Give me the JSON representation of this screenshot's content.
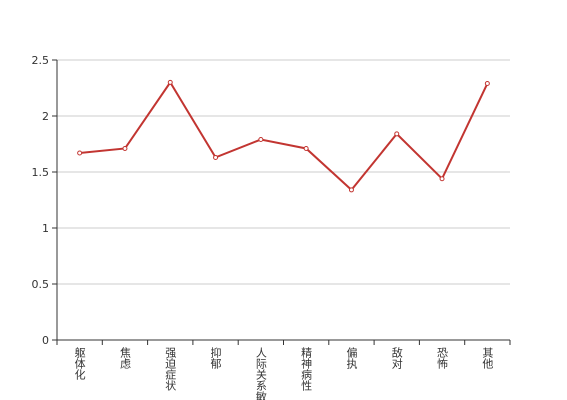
{
  "chart_data": {
    "type": "line",
    "categories": [
      "躯体化",
      "焦虑",
      "强迫症状",
      "抑郁",
      "人际关系敏感",
      "精神病性",
      "偏执",
      "敌对",
      "恐怖",
      "其他"
    ],
    "values": [
      1.67,
      1.71,
      2.3,
      1.63,
      1.79,
      1.71,
      1.34,
      1.84,
      1.44,
      2.29
    ],
    "color": "#c23531",
    "ylim": [
      0,
      2.5
    ],
    "yticks": [
      0,
      0.5,
      1,
      1.5,
      2,
      2.5
    ],
    "grid": true
  }
}
